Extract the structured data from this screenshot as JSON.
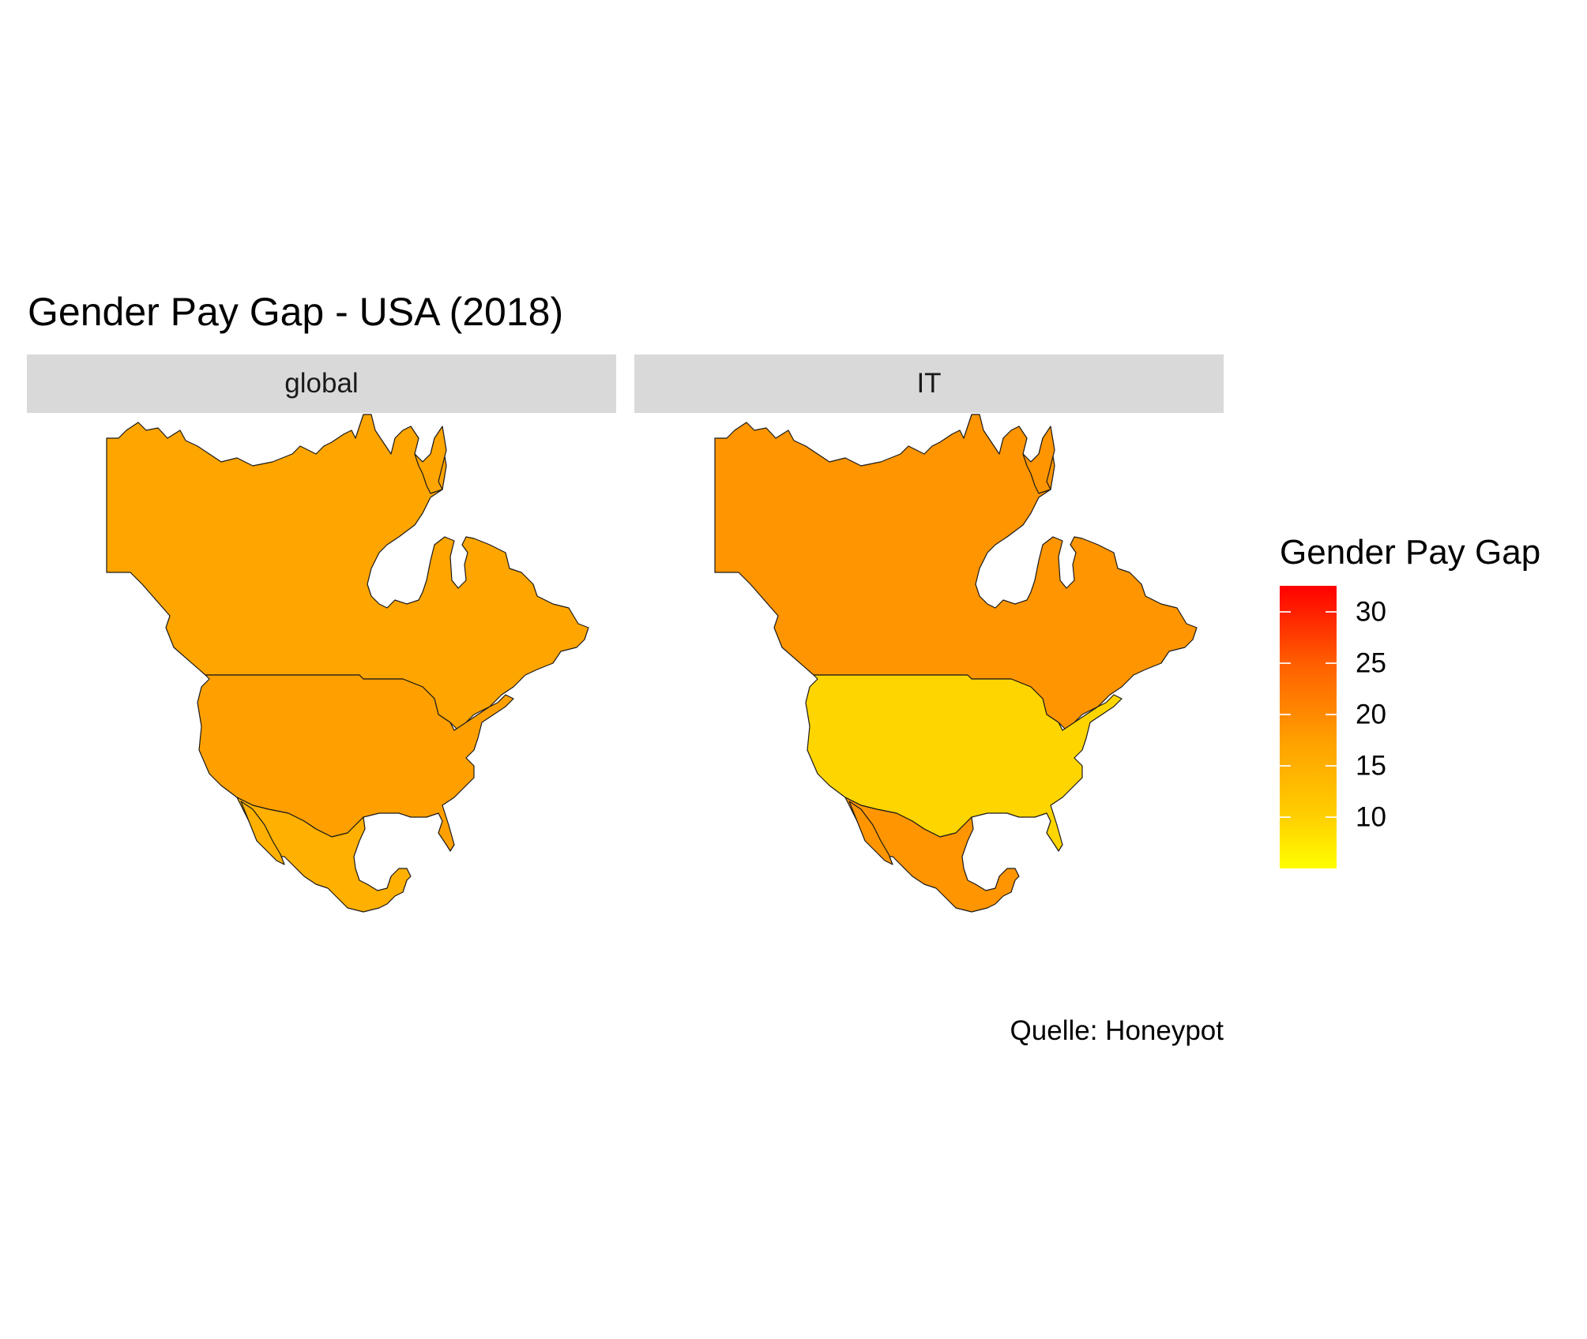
{
  "title": "Gender Pay Gap - USA (2018)",
  "caption": "Quelle: Honeypot",
  "panels": [
    {
      "label": "global",
      "regions": [
        {
          "name": "Canada",
          "value": 19,
          "color": "#ffa500"
        },
        {
          "name": "USA",
          "value": 19.5,
          "color": "#ffa000"
        },
        {
          "name": "Mexico",
          "value": 17.5,
          "color": "#ffb000"
        }
      ]
    },
    {
      "label": "IT",
      "regions": [
        {
          "name": "Canada",
          "value": 21,
          "color": "#ff9500"
        },
        {
          "name": "USA",
          "value": 13,
          "color": "#ffd500"
        },
        {
          "name": "Mexico",
          "value": 21,
          "color": "#ff9500"
        }
      ]
    }
  ],
  "legend": {
    "title": "Gender Pay Gap",
    "ticks": [
      "30",
      "25",
      "20",
      "15",
      "10"
    ],
    "tick_values": [
      30,
      25,
      20,
      15,
      10
    ],
    "min": 5,
    "max": 32.5,
    "colors": {
      "low": "#ffff00",
      "high": "#ff0000"
    }
  }
}
